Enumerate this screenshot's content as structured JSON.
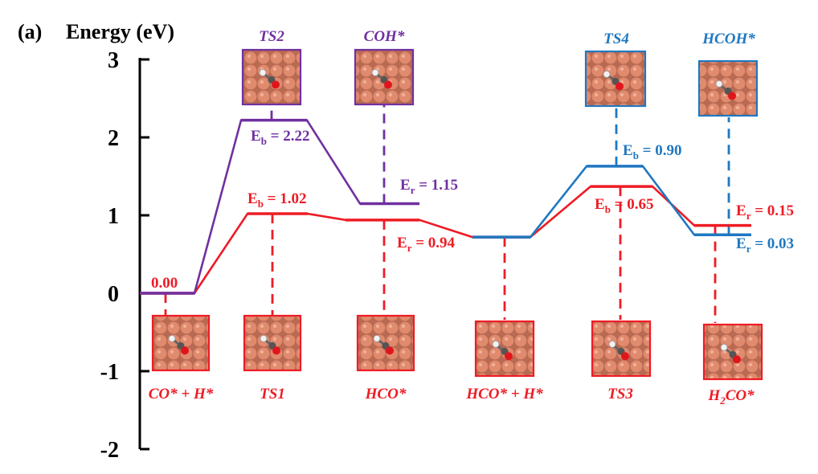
{
  "chart_data": {
    "type": "line",
    "panel_label": "(a)",
    "ylabel": "Energy (eV)",
    "ylim": [
      -2,
      3
    ],
    "yticks": [
      "3",
      "2",
      "1",
      "0",
      "-1",
      "-2"
    ],
    "colors": {
      "red": "#ee1c25",
      "purple": "#7030a0",
      "blue": "#1f78c1"
    },
    "series": [
      {
        "name": "red-path",
        "color": "#ee1c25",
        "levels": [
          0.0,
          1.02,
          0.94,
          0.72,
          1.37,
          0.87
        ]
      },
      {
        "name": "purple-path",
        "color": "#7030a0",
        "levels": [
          0.0,
          2.22,
          1.15
        ]
      },
      {
        "name": "blue-path",
        "color": "#1f78c1",
        "levels": [
          0.72,
          1.63,
          0.75
        ]
      }
    ],
    "annotations": {
      "start_value": "0.00",
      "eb_ts1": {
        "main": "E",
        "sub": "b",
        "rest": " = 1.02"
      },
      "eb_ts2": {
        "main": "E",
        "sub": "b",
        "rest": " = 2.22"
      },
      "er_coh": {
        "main": "E",
        "sub": "r",
        "rest": " = 1.15"
      },
      "er_hco": {
        "main": "E",
        "sub": "r",
        "rest": " = 0.94"
      },
      "eb_ts4": {
        "main": "E",
        "sub": "b",
        "rest": " = 0.90"
      },
      "eb_ts3": {
        "main": "E",
        "sub": "b",
        "rest": " = 0.65"
      },
      "er_h2co": {
        "main": "E",
        "sub": "r",
        "rest": " = 0.15"
      },
      "er_hcoh": {
        "main": "E",
        "sub": "r",
        "rest": " = 0.03"
      }
    },
    "states_bottom": [
      {
        "name": "co-h",
        "label": "CO* + H*",
        "color": "#ee1c25"
      },
      {
        "name": "ts1",
        "label": "TS1",
        "color": "#ee1c25"
      },
      {
        "name": "hco",
        "label": "HCO*",
        "color": "#ee1c25"
      },
      {
        "name": "hco-h",
        "label": "HCO* + H*",
        "color": "#ee1c25"
      },
      {
        "name": "ts3",
        "label": "TS3",
        "color": "#ee1c25"
      },
      {
        "name": "h2co",
        "label": "H",
        "sub": "2",
        "rest": "CO*",
        "color": "#ee1c25"
      }
    ],
    "states_top": [
      {
        "name": "ts2",
        "label": "TS2",
        "color": "#7030a0"
      },
      {
        "name": "coh",
        "label": "COH*",
        "color": "#7030a0"
      },
      {
        "name": "ts4",
        "label": "TS4",
        "color": "#1f78c1"
      },
      {
        "name": "hcoh",
        "label": "HCOH*",
        "color": "#1f78c1"
      }
    ]
  }
}
